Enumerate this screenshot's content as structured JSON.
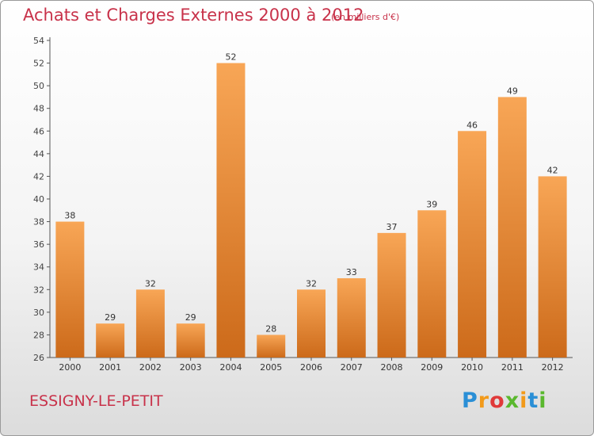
{
  "title": "Achats et Charges Externes 2000 à 2012",
  "subtitle": "(en milliers d'€)",
  "commune": "ESSIGNY-LE-PETIT",
  "brand": {
    "letters": [
      "P",
      "r",
      "o",
      "x",
      "i",
      "t",
      "i"
    ],
    "colors": [
      "#2a8fd6",
      "#f29a1a",
      "#e03a3a",
      "#5ab82e",
      "#f29a1a",
      "#2a8fd6",
      "#5ab82e"
    ]
  },
  "colors": {
    "accent": "#c8324a",
    "bar_top": "#f8a656",
    "bar_bottom": "#cc6a1a"
  },
  "chart_data": {
    "type": "bar",
    "categories": [
      "2000",
      "2001",
      "2002",
      "2003",
      "2004",
      "2005",
      "2006",
      "2007",
      "2008",
      "2009",
      "2010",
      "2011",
      "2012"
    ],
    "values": [
      38,
      29,
      32,
      29,
      52,
      28,
      32,
      33,
      37,
      39,
      46,
      49,
      42
    ],
    "ylim": [
      26,
      54
    ],
    "yticks": [
      26,
      28,
      30,
      32,
      34,
      36,
      38,
      40,
      42,
      44,
      46,
      48,
      50,
      52,
      54
    ],
    "grid": false,
    "data_labels": true
  }
}
